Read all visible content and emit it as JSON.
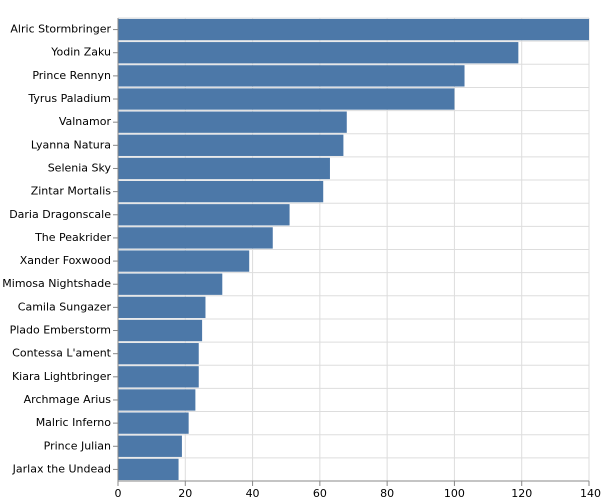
{
  "chart_data": {
    "type": "bar",
    "orientation": "horizontal",
    "categories": [
      "Alric Stormbringer",
      "Yodin Zaku",
      "Prince Rennyn",
      "Tyrus Paladium",
      "Valnamor",
      "Lyanna Natura",
      "Selenia Sky",
      "Zintar Mortalis",
      "Daria Dragonscale",
      "The Peakrider",
      "Xander Foxwood",
      "Mimosa Nightshade",
      "Camila Sungazer",
      "Plado Emberstorm",
      "Contessa L'ament",
      "Kiara Lightbringer",
      "Archmage Arius",
      "Malric Inferno",
      "Prince Julian",
      "Jarlax the Undead"
    ],
    "values": [
      140,
      119,
      103,
      100,
      68,
      67,
      63,
      61,
      51,
      46,
      39,
      31,
      26,
      25,
      24,
      24,
      23,
      21,
      19,
      18
    ],
    "xlim": [
      0,
      140
    ],
    "xticks": [
      0,
      20,
      40,
      60,
      80,
      100,
      120,
      140
    ],
    "title": "",
    "xlabel": "",
    "ylabel": "",
    "grid": true,
    "bar_color": "#4c78a8",
    "grid_color": "#dddddd",
    "axis_color": "#888888"
  }
}
